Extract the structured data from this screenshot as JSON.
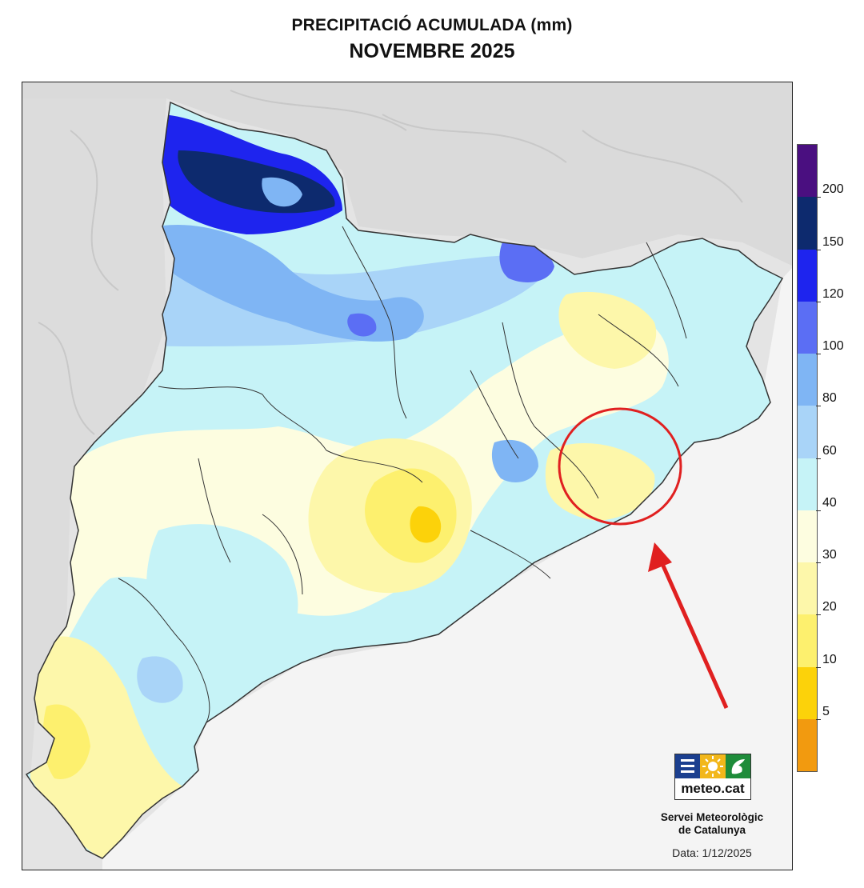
{
  "title": "PRECIPITACIÓ ACUMULADA (mm)",
  "subtitle": "NOVEMBRE 2025",
  "legend": {
    "unit": "mm",
    "bins": [
      {
        "from": 0,
        "to": 5,
        "color": "#f29a0f"
      },
      {
        "from": 5,
        "to": 10,
        "color": "#fcd20a"
      },
      {
        "from": 10,
        "to": 20,
        "color": "#fdf06e"
      },
      {
        "from": 20,
        "to": 30,
        "color": "#fdf7aa"
      },
      {
        "from": 30,
        "to": 40,
        "color": "#fdfde0"
      },
      {
        "from": 40,
        "to": 60,
        "color": "#c6f3f7"
      },
      {
        "from": 60,
        "to": 80,
        "color": "#a9d4f8"
      },
      {
        "from": 80,
        "to": 100,
        "color": "#7fb5f4"
      },
      {
        "from": 100,
        "to": 120,
        "color": "#5b6ef4"
      },
      {
        "from": 120,
        "to": 150,
        "color": "#1e24ee"
      },
      {
        "from": 150,
        "to": 200,
        "color": "#0d2a6e"
      },
      {
        "from": 200,
        "to": null,
        "color": "#4a0f80"
      }
    ],
    "tick_labels": [
      "5",
      "10",
      "20",
      "30",
      "40",
      "60",
      "80",
      "100",
      "120",
      "150",
      "200"
    ]
  },
  "logo": {
    "text": "meteo.cat",
    "icons": [
      "list-lines-icon",
      "sun-icon",
      "leaf-icon"
    ]
  },
  "organization": {
    "line1": "Servei Meteorològic",
    "line2": "de Catalunya"
  },
  "date": "Data: 1/12/2025",
  "annotation": {
    "shape": "circle",
    "color": "#e02020",
    "target": "coastal area north-east of Barcelona (Maresme)"
  }
}
